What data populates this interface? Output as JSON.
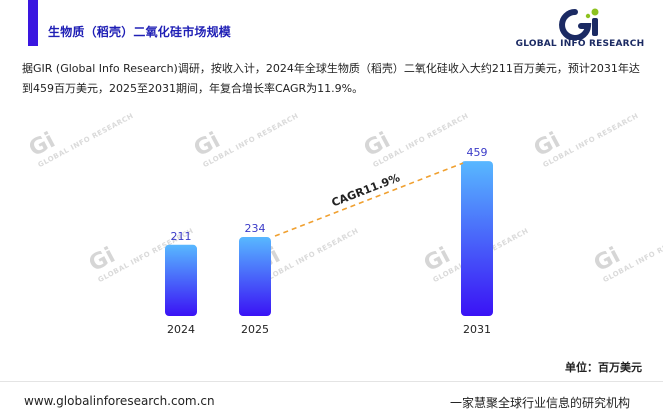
{
  "header": {
    "title": "生物质（稻壳）二氧化硅市场规模",
    "logo_text": "GLOBAL INFO RESEARCH",
    "accent_color": "#3a16e0",
    "title_color": "#1f1fb5",
    "logo_colors": {
      "primary": "#1b2a63",
      "accent": "#8dc21f"
    }
  },
  "intro": "据GIR (Global Info Research)调研，按收入计，2024年全球生物质（稻壳）二氧化硅收入大约211百万美元，预计2031年达到459百万美元，2025至2031期间，年复合增长率CAGR为11.9%。",
  "watermark": {
    "initials": "Gi",
    "text": "GLOBAL INFO RESEARCH"
  },
  "chart_data": {
    "type": "bar",
    "categories": [
      "2024",
      "2025",
      "2031"
    ],
    "values": [
      211,
      234,
      459
    ],
    "data_labels": [
      "211",
      "234",
      "459"
    ],
    "ylim": [
      0,
      480
    ],
    "grid": false,
    "bar_gradient": {
      "top": "#58b8ff",
      "bottom": "#3a12f5"
    },
    "label_color": "#3b3bc8",
    "annotation": {
      "text": "CAGR11.9%",
      "from": "2025",
      "to": "2031",
      "line_color": "#f0a030"
    },
    "unit": "单位：百万美元"
  },
  "footer": {
    "url": "www.globalinforesearch.com.cn",
    "slogan": "一家慧聚全球行业信息的研究机构"
  }
}
